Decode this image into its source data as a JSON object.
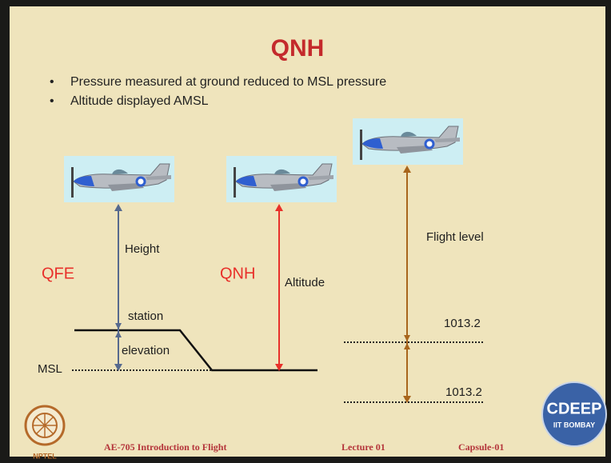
{
  "slide": {
    "title": "QNH",
    "bullets": [
      "Pressure measured at ground reduced to MSL pressure",
      "Altitude displayed AMSL"
    ],
    "diagram": {
      "qfe": "QFE",
      "height": "Height",
      "station": "station",
      "elevation": "elevation",
      "msl": "MSL",
      "qnh": "QNH",
      "altitude": "Altitude",
      "flight_level": "Flight level",
      "pressure_upper": "1013.2",
      "pressure_lower": "1013.2"
    },
    "footer": {
      "course": "AE-705 Introduction to Flight",
      "lecture": "Lecture 01",
      "capsule": "Capsule-01"
    },
    "logos": {
      "cdeep": "CDEEP",
      "iit": "IIT BOMBAY",
      "nptel": "NPTEL"
    }
  }
}
